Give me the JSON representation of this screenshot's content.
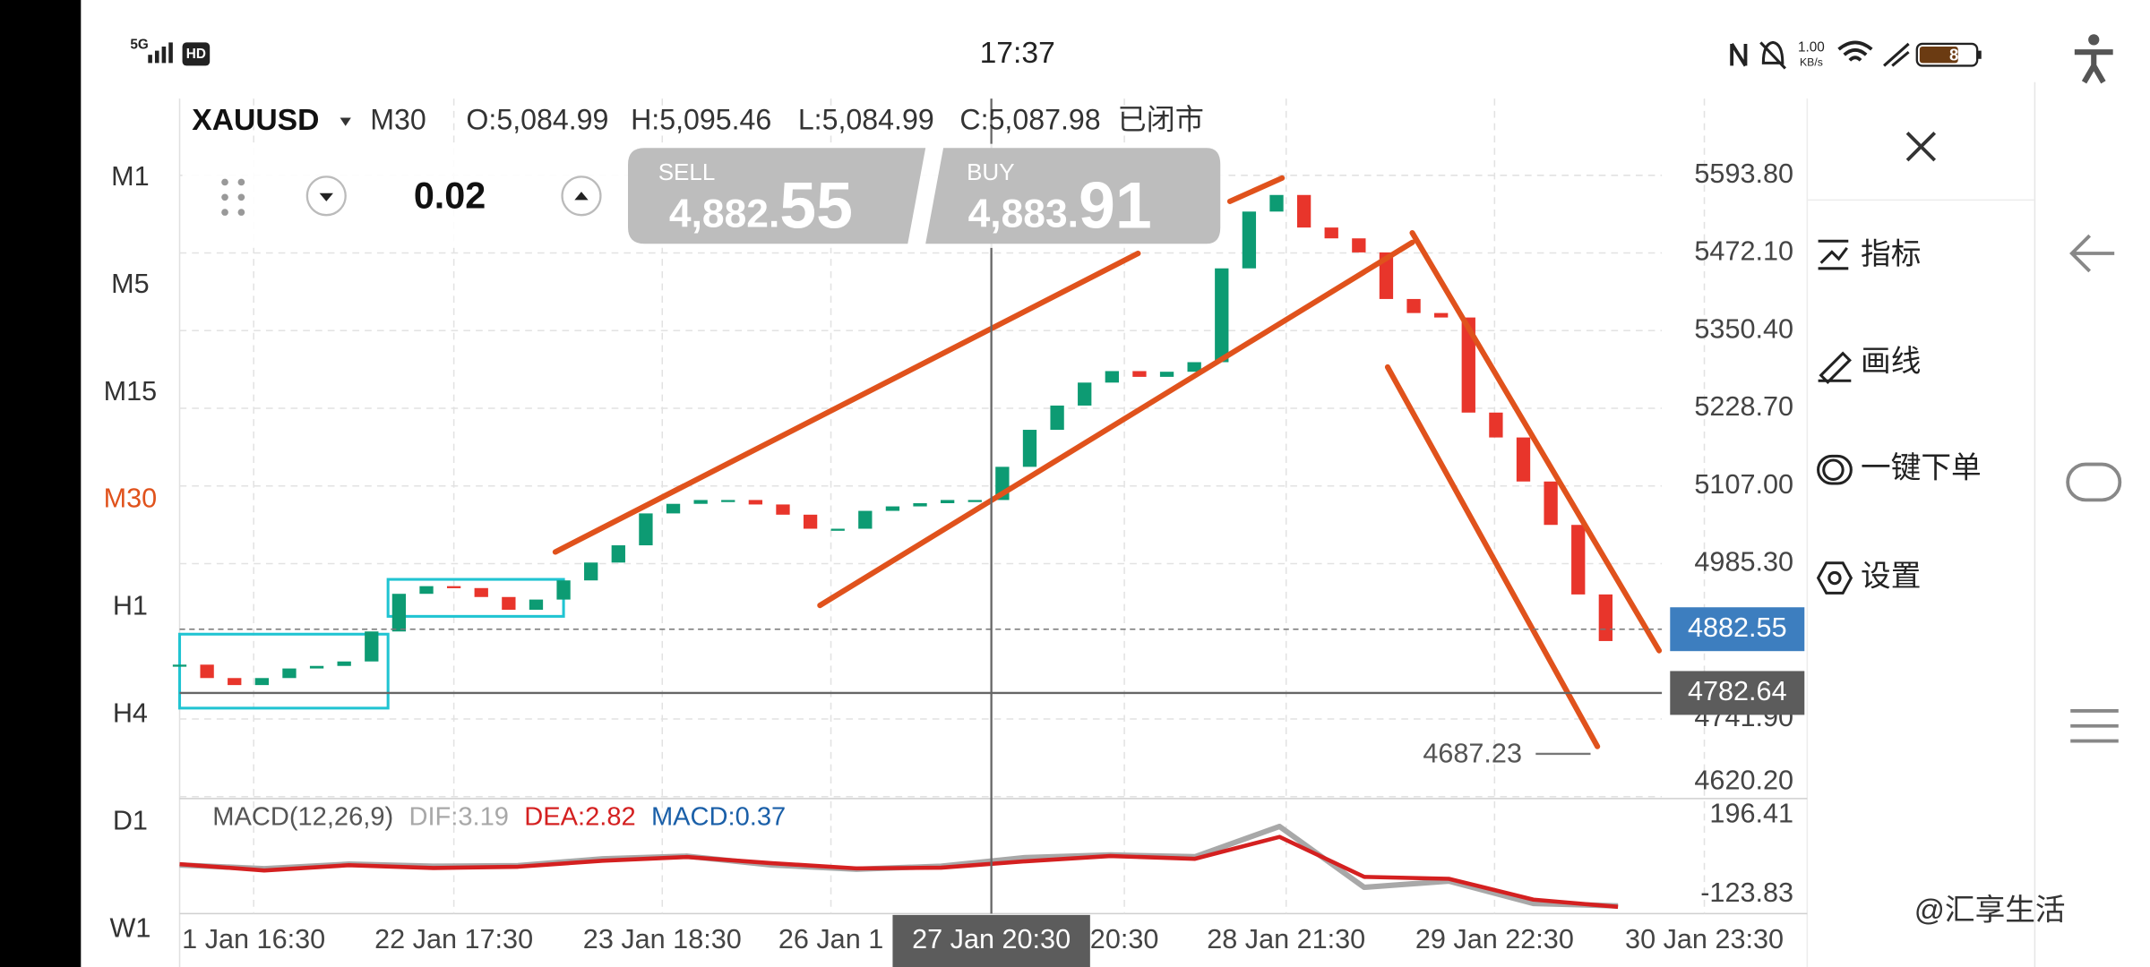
{
  "status_bar": {
    "network": "5G",
    "badge": "HD",
    "time": "17:37",
    "speed": "1.00",
    "speed_unit": "KB/s",
    "battery": "8"
  },
  "header": {
    "symbol": "XAUUSD",
    "timeframe": "M30",
    "open": "O:5,084.99",
    "high": "H:5,095.46",
    "low": "L:5,084.99",
    "close": "C:5,087.98",
    "status": "已闭市"
  },
  "trade_panel": {
    "lot": "0.02",
    "sell_label": "SELL",
    "sell_price": "4,882.",
    "sell_pips": "55",
    "buy_label": "BUY",
    "buy_price": "4,883.",
    "buy_pips": "91"
  },
  "timeframes": {
    "items": [
      "M1",
      "M5",
      "M15",
      "M30",
      "H1",
      "H4",
      "D1",
      "W1"
    ],
    "active": "M30",
    "active_color": "#e0521c"
  },
  "side_menu": {
    "items": [
      "指标",
      "画线",
      "一键下单",
      "设置"
    ]
  },
  "watermark": "@汇享生活",
  "chart_data": [
    {
      "type": "candlestick",
      "values": [
        4827,
        4806,
        4795,
        4806,
        4821,
        4825,
        4832,
        4879,
        4938,
        4950,
        4947,
        4933,
        4913,
        4929,
        4959,
        4987,
        5014,
        5064,
        5079,
        5085,
        5085,
        5078,
        5062,
        5040,
        5040,
        5068,
        5075,
        5080,
        5085,
        5085,
        5137,
        5195,
        5233,
        5269,
        5287,
        5278,
        5286,
        5301,
        5448,
        5537,
        5563,
        5512,
        5495,
        5473,
        5400,
        5378,
        5371,
        5222,
        5183,
        5114,
        5046,
        4937,
        4864
      ],
      "up_color": "#0d9b73",
      "down_color": "#e8352b",
      "xlim": [
        0,
        59
      ],
      "xticks": [
        {
          "value": 2.7,
          "label": "1 Jan 16:30"
        },
        {
          "value": 10,
          "label": "22 Jan 17:30"
        },
        {
          "value": 17.6,
          "label": "23 Jan 18:30"
        },
        {
          "value": 23.75,
          "label": "26 Jan 1"
        },
        {
          "value": 34.45,
          "label": "20:30"
        },
        {
          "value": 40.35,
          "label": "28 Jan 21:30"
        },
        {
          "value": 47.95,
          "label": "29 Jan 22:30"
        },
        {
          "value": 55.6,
          "label": "30 Jan 23:30"
        }
      ],
      "ylim": [
        4617.2,
        5714.0
      ],
      "yticks": [
        {
          "value": 5593.8,
          "label": "5593.80"
        },
        {
          "value": 5472.1,
          "label": "5472.10"
        },
        {
          "value": 5350.4,
          "label": "5350.40"
        },
        {
          "value": 5228.7,
          "label": "5228.70"
        },
        {
          "value": 5107,
          "label": "5107.00"
        },
        {
          "value": 4985.3,
          "label": "4985.30"
        },
        {
          "value": 4741.9,
          "label": "4741.90"
        },
        {
          "value": 4620.2,
          "label": "4620.20"
        }
      ],
      "grid": true,
      "last_price": 4882.55,
      "last_price_color": "#3d7ebf",
      "crosshair": {
        "x": 29.6,
        "x_label": "27 Jan 20:30",
        "y": 4782.64
      },
      "low_marker": 4687.23
    },
    {
      "type": "line",
      "title": "MACD(12,26,9)",
      "series": [
        {
          "name": "DIF:3.19",
          "color": "#a8a8a8",
          "values": [
            -5,
            -20,
            -2,
            -10,
            -8,
            20,
            30,
            -5,
            -22,
            -10,
            25,
            35,
            28,
            150,
            -95,
            -70,
            -160,
            -170
          ]
        },
        {
          "name": "DEA:2.82",
          "color": "#d42020",
          "values": [
            -2,
            -27,
            -6,
            -17,
            -12,
            12,
            27,
            2,
            -19,
            -16,
            10,
            31,
            20,
            108,
            -53,
            -61,
            -145,
            -174
          ]
        }
      ],
      "macd_label": "MACD:0.37",
      "macd_label_color": "#1a5fa8",
      "ylim": [
        -201.1,
        262.7
      ],
      "yticks": [
        196.41,
        -123.83
      ]
    }
  ]
}
